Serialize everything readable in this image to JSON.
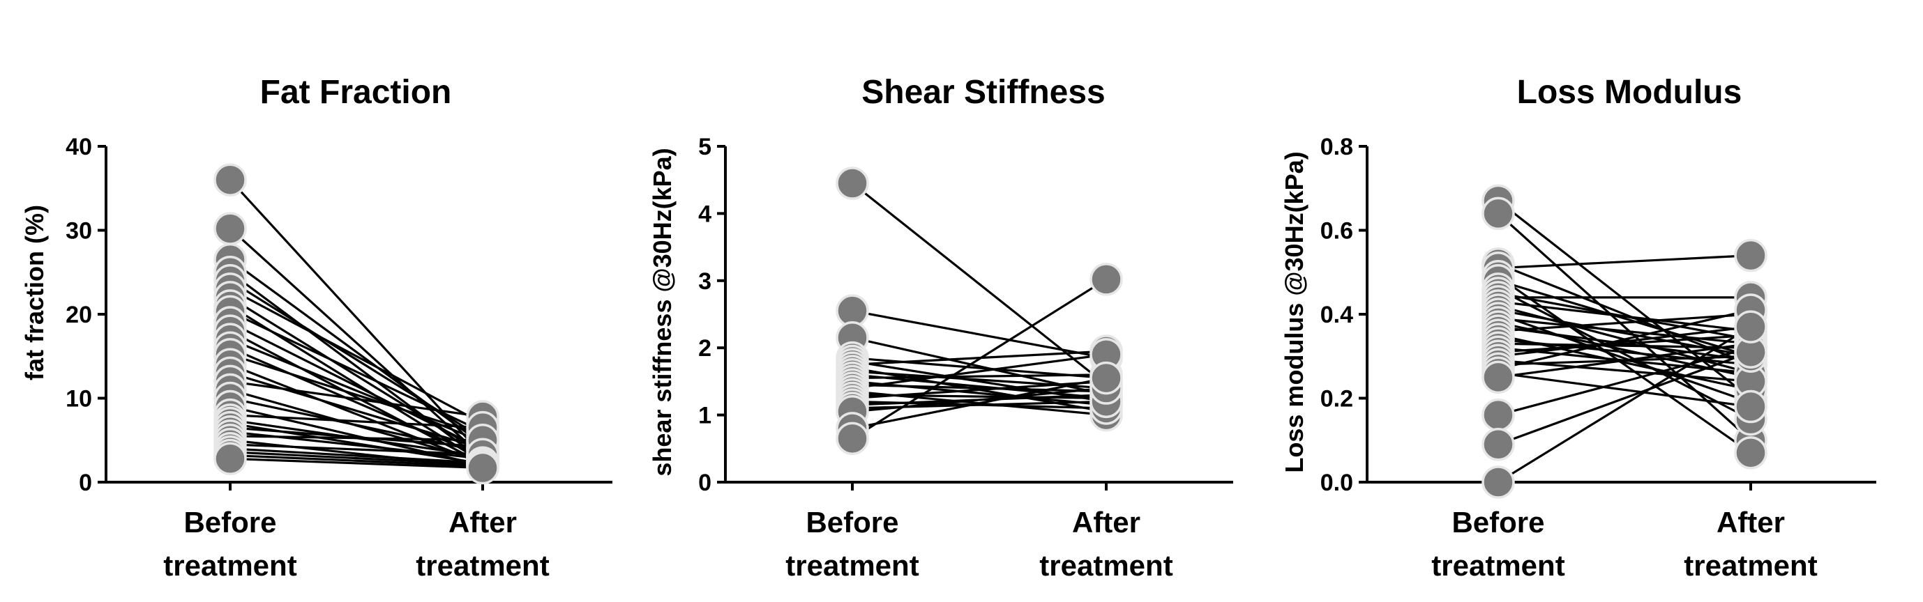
{
  "colors": {
    "point_fill": "#7a7a7a",
    "point_stroke": "#e6e6e6",
    "line": "#000000",
    "background": "#ffffff"
  },
  "chart_data": [
    {
      "type": "line",
      "title": "Fat Fraction",
      "ylabel": "fat fraction  (%)",
      "xlabel": "",
      "categories": [
        "Before\ntreatment",
        "After\ntreatment"
      ],
      "ylim": [
        0,
        40
      ],
      "yticks": [
        "0",
        "10",
        "20",
        "30",
        "40"
      ],
      "pairs": [
        [
          36.0,
          3.2
        ],
        [
          30.2,
          3.0
        ],
        [
          26.5,
          4.5
        ],
        [
          25.0,
          2.6
        ],
        [
          24.0,
          5.2
        ],
        [
          23.0,
          7.0
        ],
        [
          22.0,
          3.4
        ],
        [
          21.0,
          2.4
        ],
        [
          20.3,
          6.0
        ],
        [
          19.0,
          3.9
        ],
        [
          18.0,
          2.2
        ],
        [
          17.0,
          4.8
        ],
        [
          16.0,
          3.0
        ],
        [
          15.2,
          5.6
        ],
        [
          14.0,
          2.2
        ],
        [
          13.0,
          4.0
        ],
        [
          12.0,
          7.8
        ],
        [
          11.0,
          2.5
        ],
        [
          10.0,
          3.6
        ],
        [
          9.0,
          2.0
        ],
        [
          8.0,
          6.5
        ],
        [
          7.4,
          3.1
        ],
        [
          7.0,
          2.2
        ],
        [
          6.5,
          4.2
        ],
        [
          6.0,
          2.8
        ],
        [
          5.5,
          5.0
        ],
        [
          5.0,
          1.8
        ],
        [
          4.5,
          3.3
        ],
        [
          4.0,
          2.3
        ],
        [
          3.6,
          2.1
        ],
        [
          3.2,
          1.9
        ],
        [
          2.8,
          1.7
        ]
      ]
    },
    {
      "type": "line",
      "title": "Shear Stiffness",
      "ylabel": "shear stiffness  @30Hz(kPa)",
      "xlabel": "",
      "categories": [
        "Before\ntreatment",
        "After\ntreatment"
      ],
      "ylim": [
        0,
        5
      ],
      "yticks": [
        "0",
        "1",
        "2",
        "3",
        "4",
        "5"
      ],
      "pairs": [
        [
          4.45,
          1.45
        ],
        [
          2.55,
          1.85
        ],
        [
          2.15,
          1.3
        ],
        [
          1.85,
          1.55
        ],
        [
          1.8,
          1.2
        ],
        [
          1.75,
          1.95
        ],
        [
          1.7,
          1.05
        ],
        [
          1.65,
          1.4
        ],
        [
          1.6,
          1.25
        ],
        [
          1.55,
          1.6
        ],
        [
          1.5,
          1.15
        ],
        [
          1.45,
          1.35
        ],
        [
          1.4,
          1.9
        ],
        [
          1.35,
          1.0
        ],
        [
          1.3,
          1.25
        ],
        [
          1.25,
          1.5
        ],
        [
          1.2,
          1.1
        ],
        [
          1.15,
          1.3
        ],
        [
          1.1,
          1.2
        ],
        [
          1.05,
          1.4
        ],
        [
          0.8,
          1.55
        ],
        [
          0.65,
          3.02
        ]
      ]
    },
    {
      "type": "line",
      "title": "Loss Modulus",
      "ylabel": "Loss modulus  @30Hz(kPa)",
      "xlabel": "",
      "categories": [
        "Before\ntreatment",
        "After\ntreatment"
      ],
      "ylim": [
        0,
        0.8
      ],
      "yticks": [
        "0.0",
        "0.2",
        "0.4",
        "0.6",
        "0.8"
      ],
      "pairs": [
        [
          0.67,
          0.2
        ],
        [
          0.64,
          0.1
        ],
        [
          0.52,
          0.28
        ],
        [
          0.51,
          0.54
        ],
        [
          0.49,
          0.07
        ],
        [
          0.48,
          0.3
        ],
        [
          0.46,
          0.15
        ],
        [
          0.45,
          0.34
        ],
        [
          0.44,
          0.44
        ],
        [
          0.43,
          0.36
        ],
        [
          0.42,
          0.26
        ],
        [
          0.41,
          0.3
        ],
        [
          0.4,
          0.19
        ],
        [
          0.39,
          0.33
        ],
        [
          0.38,
          0.25
        ],
        [
          0.37,
          0.29
        ],
        [
          0.36,
          0.4
        ],
        [
          0.35,
          0.22
        ],
        [
          0.34,
          0.28
        ],
        [
          0.33,
          0.32
        ],
        [
          0.32,
          0.26
        ],
        [
          0.31,
          0.35
        ],
        [
          0.3,
          0.37
        ],
        [
          0.29,
          0.24
        ],
        [
          0.28,
          0.3
        ],
        [
          0.27,
          0.41
        ],
        [
          0.26,
          0.18
        ],
        [
          0.25,
          0.33
        ],
        [
          0.16,
          0.32
        ],
        [
          0.09,
          0.31
        ],
        [
          0.0,
          0.37
        ]
      ]
    }
  ]
}
